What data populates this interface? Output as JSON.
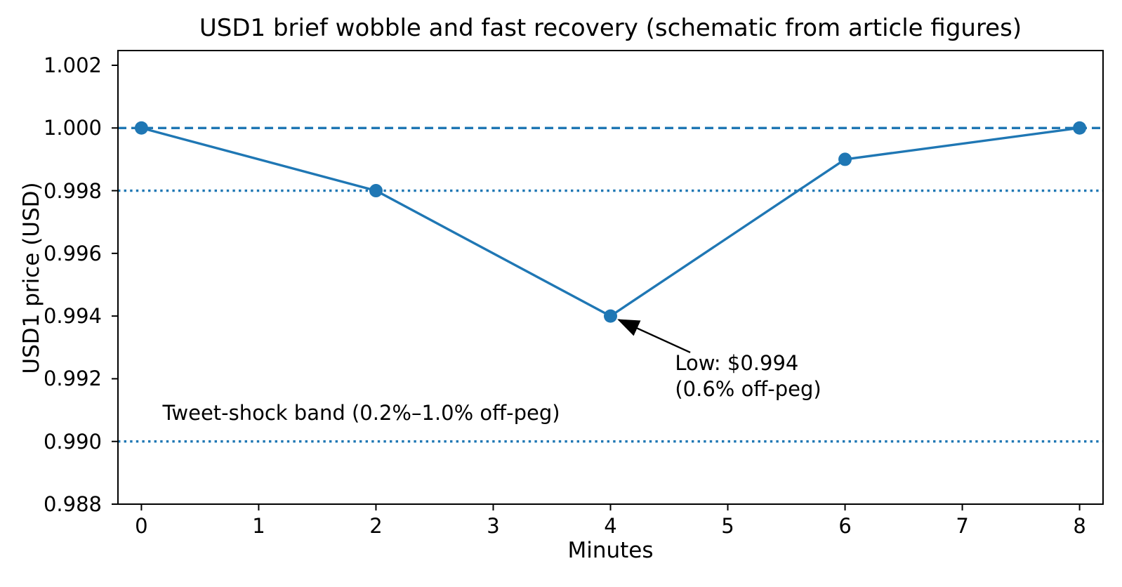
{
  "chart_data": {
    "type": "line",
    "title": "USD1 brief wobble and fast recovery (schematic from article figures)",
    "xlabel": "Minutes",
    "ylabel": "USD1 price (USD)",
    "series": [
      {
        "name": "USD1 price",
        "x": [
          0,
          2,
          4,
          6,
          8
        ],
        "y": [
          1.0,
          0.998,
          0.994,
          0.999,
          1.0
        ],
        "color": "#1f77b4",
        "line_style": "solid",
        "marker": "circle"
      }
    ],
    "reference_lines": [
      {
        "y": 1.0,
        "style": "dashed",
        "color": "#1f77b4",
        "role": "peg-line"
      },
      {
        "y": 0.998,
        "style": "dotted",
        "color": "#1f77b4",
        "role": "tweet-shock-band-upper"
      },
      {
        "y": 0.99,
        "style": "dotted",
        "color": "#1f77b4",
        "role": "tweet-shock-band-lower"
      }
    ],
    "xlim": [
      -0.2,
      8.2
    ],
    "ylim": [
      0.988,
      1.00247
    ],
    "xtick_values": [
      0,
      1,
      2,
      3,
      4,
      5,
      6,
      7,
      8
    ],
    "xtick_labels": [
      "0",
      "1",
      "2",
      "3",
      "4",
      "5",
      "6",
      "7",
      "8"
    ],
    "ytick_values": [
      0.988,
      0.99,
      0.992,
      0.994,
      0.996,
      0.998,
      1.0,
      1.002
    ],
    "ytick_labels": [
      "0.988",
      "0.990",
      "0.992",
      "0.994",
      "0.996",
      "0.998",
      "1.000",
      "1.002"
    ],
    "grid": false,
    "legend": "none",
    "annotations": [
      {
        "id": "low-point",
        "lines": [
          "Low: $0.994",
          "(0.6% off-peg)"
        ],
        "target": {
          "x": 4,
          "y": 0.994
        },
        "text_xy": {
          "x": 4.55,
          "y": 0.9929
        },
        "arrow_tail": {
          "x": 4.68,
          "y": 0.99284
        },
        "has_arrow": true
      },
      {
        "id": "band-label",
        "lines": [
          "Tweet-shock band (0.2%–1.0% off-peg)"
        ],
        "text_xy": {
          "x": 0.18,
          "y": 0.99129
        },
        "has_arrow": false
      }
    ],
    "colors": {
      "series_blue": "#1f77b4",
      "spine": "#000000",
      "text": "#000000",
      "background": "#ffffff",
      "annotation_arrow": "#000000"
    }
  }
}
